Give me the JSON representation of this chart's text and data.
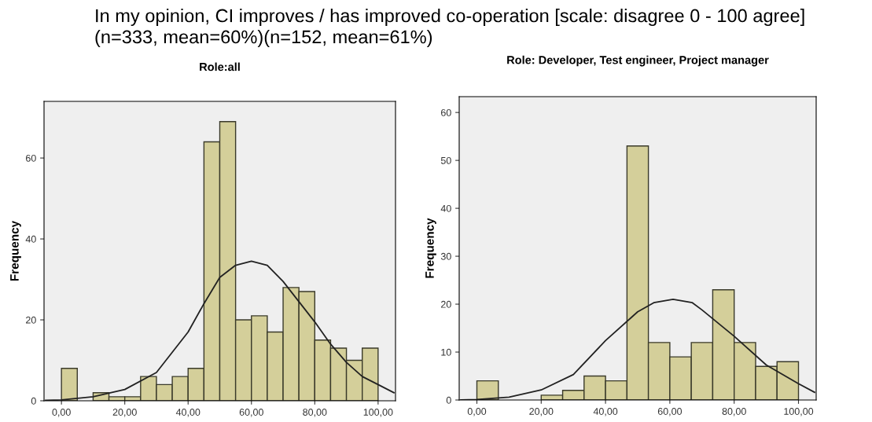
{
  "chart_data": [
    {
      "type": "histogram",
      "title": "Role:all",
      "ylabel": "Frequency",
      "annotations": [
        "In my opinion, CI improves / has improved co-operation [scale: disagree 0 - 100 agree]",
        "(n=333, mean=60%)(n=152, mean=61%)"
      ],
      "bins": [
        0,
        5,
        10,
        15,
        20,
        25,
        30,
        35,
        40,
        45,
        50,
        55,
        60,
        65,
        70,
        75,
        80,
        85,
        90,
        95,
        100
      ],
      "series": [
        {
          "color": "#d4cf9a",
          "values": [
            8,
            0,
            2,
            1,
            1,
            6,
            4,
            6,
            8,
            64,
            69,
            20,
            21,
            17,
            28,
            27,
            15,
            13,
            10,
            13
          ]
        },
        {
          "type": "line",
          "color": "#222222",
          "x": [
            -5,
            0,
            10,
            20,
            30,
            40,
            45,
            50,
            55,
            60,
            65,
            70,
            75,
            80,
            85,
            90,
            95,
            100,
            105
          ],
          "values": [
            0.1,
            0.2,
            1,
            2.8,
            7,
            17,
            24,
            30.5,
            33.5,
            34.5,
            33.5,
            29.5,
            24.5,
            19.5,
            14,
            9.5,
            6,
            4,
            2
          ]
        }
      ],
      "xlim": [
        -5.5,
        105.5
      ],
      "ylim": [
        0,
        74
      ],
      "xticks": [
        {
          "value": 0,
          "label": "0,00"
        },
        {
          "value": 20,
          "label": "20,00"
        },
        {
          "value": 40,
          "label": "40,00"
        },
        {
          "value": 60,
          "label": "60,00"
        },
        {
          "value": 80,
          "label": "80,00"
        },
        {
          "value": 100,
          "label": "100,00"
        }
      ],
      "yticks": [
        0,
        20,
        40,
        60
      ],
      "grid": false,
      "legend": false,
      "marker": "none",
      "line_style": "solid"
    },
    {
      "type": "histogram",
      "title": "Role: Developer, Test engineer, Project manager",
      "ylabel": "Frequency",
      "bins": [
        0,
        6.67,
        13.33,
        20,
        26.67,
        33.33,
        40,
        46.67,
        53.33,
        60,
        66.67,
        73.33,
        80,
        86.67,
        93.33,
        100
      ],
      "series": [
        {
          "color": "#d4cf9a",
          "values": [
            4,
            0,
            0,
            1,
            2,
            5,
            4,
            53,
            12,
            9,
            12,
            23,
            12,
            7,
            8
          ]
        },
        {
          "type": "line",
          "color": "#222222",
          "x": [
            -5,
            0,
            10,
            20,
            30,
            40,
            50,
            55,
            61,
            67,
            70,
            80,
            90,
            100,
            105
          ],
          "values": [
            0,
            0.1,
            0.6,
            2.1,
            5.3,
            12.4,
            18.4,
            20.3,
            21,
            20.3,
            18.8,
            13.3,
            7.3,
            3.4,
            1.6
          ]
        }
      ],
      "xlim": [
        -5.5,
        105.5
      ],
      "ylim": [
        0,
        63.3
      ],
      "xticks": [
        {
          "value": 0,
          "label": "0,00"
        },
        {
          "value": 20,
          "label": "20,00"
        },
        {
          "value": 40,
          "label": "40,00"
        },
        {
          "value": 60,
          "label": "60,00"
        },
        {
          "value": 80,
          "label": "80,00"
        },
        {
          "value": 100,
          "label": "100,00"
        }
      ],
      "yticks": [
        0,
        10,
        20,
        30,
        40,
        50,
        60
      ],
      "grid": false,
      "legend": false,
      "marker": "none",
      "line_style": "solid"
    }
  ]
}
